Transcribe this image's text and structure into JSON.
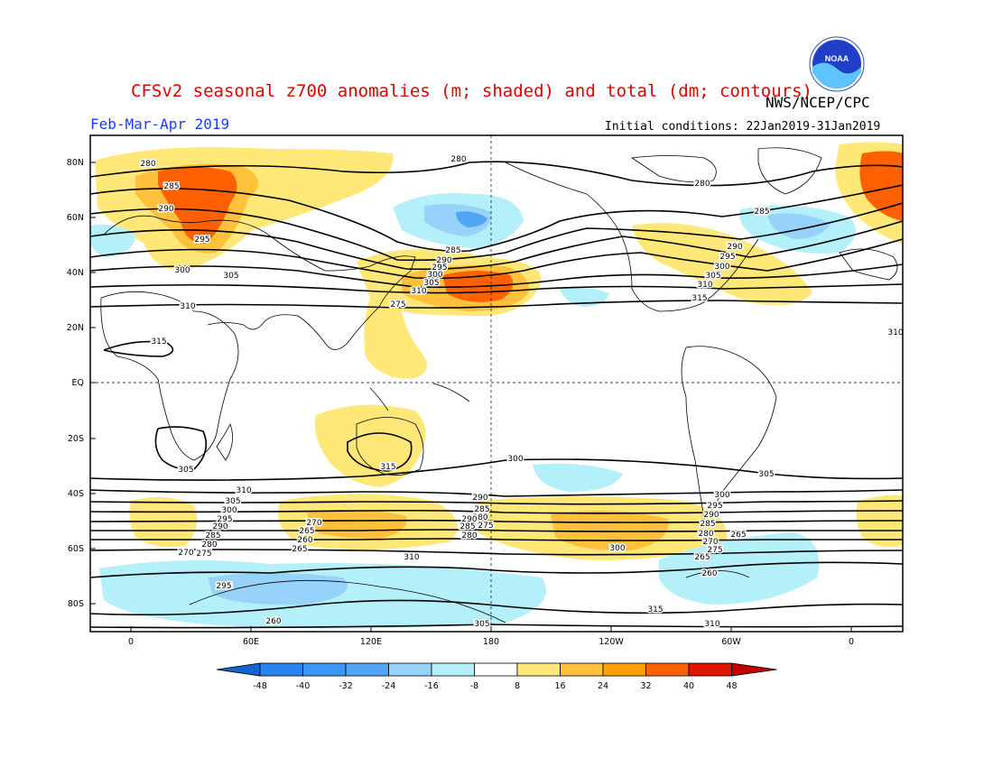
{
  "header": {
    "title": "CFSv2 seasonal z700 anomalies (m; shaded) and total (dm; contours)",
    "org": "NWS/NCEP/CPC",
    "period": "Feb-Mar-Apr 2019",
    "initial_conditions": "Initial conditions: 22Jan2019-31Jan2019",
    "logo_text": "NOAA"
  },
  "axes": {
    "lat_labels": [
      "80N",
      "60N",
      "40N",
      "20N",
      "EQ",
      "20S",
      "40S",
      "60S",
      "80S"
    ],
    "lon_labels": [
      "0",
      "60E",
      "120E",
      "180",
      "120W",
      "60W",
      "0"
    ]
  },
  "contour_labels": [
    "280",
    "285",
    "290",
    "295",
    "300",
    "305",
    "310",
    "315",
    "310",
    "305",
    "300",
    "295",
    "290",
    "285",
    "280",
    "275",
    "270",
    "265",
    "260",
    "280",
    "285",
    "290",
    "295",
    "300",
    "305",
    "310",
    "275",
    "280",
    "285",
    "290",
    "295",
    "300",
    "305",
    "310",
    "315",
    "310",
    "305",
    "300",
    "295",
    "290",
    "285",
    "280",
    "270",
    "265",
    "260",
    "315",
    "310",
    "305",
    "300",
    "290",
    "285",
    "280",
    "275",
    "270",
    "265",
    "260",
    "265",
    "310",
    "305",
    "300",
    "295",
    "290",
    "285",
    "280",
    "275",
    "265",
    "315"
  ],
  "colorbar": {
    "labels": [
      "-48",
      "-40",
      "-32",
      "-24",
      "-16",
      "-8",
      "8",
      "16",
      "24",
      "32",
      "40",
      "48"
    ],
    "colors": [
      "#1464d2",
      "#2882f0",
      "#3c96f5",
      "#50a5f5",
      "#96d2fa",
      "#b4f0fa",
      "#ffffff",
      "#ffe878",
      "#ffc03c",
      "#ffa000",
      "#ff6000",
      "#e11400",
      "#c00000"
    ]
  }
}
